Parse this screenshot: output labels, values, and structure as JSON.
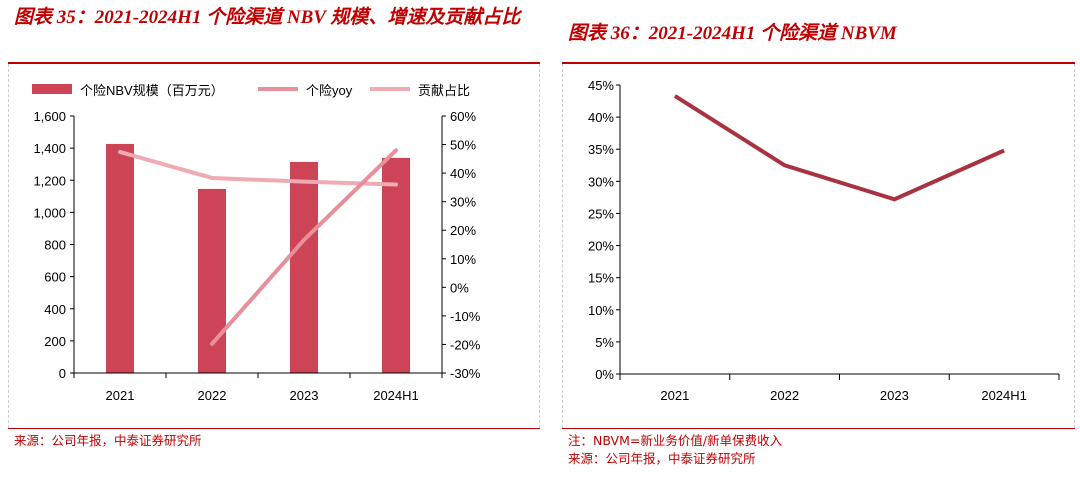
{
  "left": {
    "title": "图表 35：2021-2024H1 个险渠道 NBV 规模、增速及贡献占比",
    "source": "来源：公司年报，中泰证券研究所"
  },
  "right": {
    "title": "图表 36：2021-2024H1 个险渠道 NBVM",
    "note": "注：NBVM=新业务价值/新单保费收入",
    "source": "来源：公司年报，中泰证券研究所"
  },
  "chart_data": [
    {
      "type": "bar",
      "categories": [
        "2021",
        "2022",
        "2023",
        "2024H1"
      ],
      "series": [
        {
          "name": "个险NBV规模（百万元）",
          "type": "bar",
          "axis": "left",
          "values": [
            1426,
            1146,
            1314,
            1339
          ],
          "color": "#cc4455"
        },
        {
          "name": "个险yoy",
          "type": "line",
          "axis": "right",
          "values": [
            null,
            -19.8,
            16.6,
            48.0
          ],
          "color": "#e8909a"
        },
        {
          "name": "贡献占比",
          "type": "line",
          "axis": "right",
          "values": [
            47.4,
            38.3,
            37.0,
            36.0
          ],
          "color": "#f0aab2"
        }
      ],
      "ylim": [
        0,
        1600
      ],
      "yticks": [
        "0",
        "200",
        "400",
        "600",
        "800",
        "1,000",
        "1,200",
        "1,400",
        "1,600"
      ],
      "y2lim": [
        -30,
        60
      ],
      "y2ticks": [
        "-30%",
        "-20%",
        "-10%",
        "0%",
        "10%",
        "20%",
        "30%",
        "40%",
        "50%",
        "60%"
      ],
      "legend": "top",
      "grid": false
    },
    {
      "type": "line",
      "categories": [
        "2021",
        "2022",
        "2023",
        "2024H1"
      ],
      "series": [
        {
          "values": [
            43.3,
            32.5,
            27.2,
            34.8
          ],
          "color": "#a83240"
        }
      ],
      "ylim": [
        0,
        45
      ],
      "yticks": [
        "0%",
        "5%",
        "10%",
        "15%",
        "20%",
        "25%",
        "30%",
        "35%",
        "40%",
        "45%"
      ],
      "grid": false
    }
  ]
}
